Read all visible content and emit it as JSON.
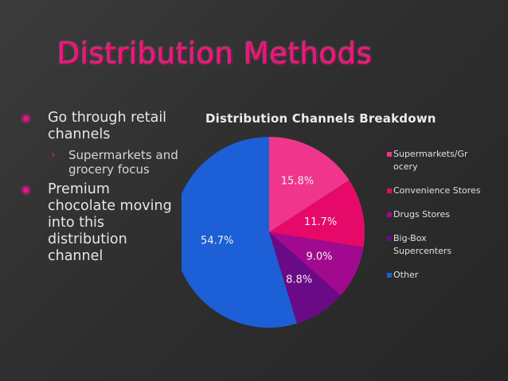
{
  "slide": {
    "title": "Distribution Methods",
    "bullets": [
      {
        "level": 1,
        "text": "Go through retail channels",
        "marker": "◉"
      },
      {
        "level": 2,
        "text": "Supermarkets and grocery focus",
        "marker": "›"
      },
      {
        "level": 1,
        "text": "Premium chocolate moving into this distribution channel",
        "marker": "◉"
      }
    ]
  },
  "chart_data": {
    "type": "pie",
    "title": "Distribution Channels Breakdown",
    "categories": [
      "Supermarkets/Grocery",
      "Convenience Stores",
      "Drugs Stores",
      "Big-Box Supercenters",
      "Other"
    ],
    "legend_labels": [
      "Supermarkets/Gr ocery",
      "Convenience Stores",
      "Drugs Stores",
      "Big-Box Supercenters",
      "Other"
    ],
    "values": [
      15.8,
      11.7,
      9.0,
      8.8,
      54.7
    ],
    "data_labels": [
      "15.8%",
      "11.7%",
      "9.0%",
      "8.8%",
      "54.7%"
    ],
    "colors": [
      "#f0368c",
      "#e6096a",
      "#a10a8e",
      "#6b0a86",
      "#1c5fd6"
    ],
    "legend_position": "right"
  }
}
